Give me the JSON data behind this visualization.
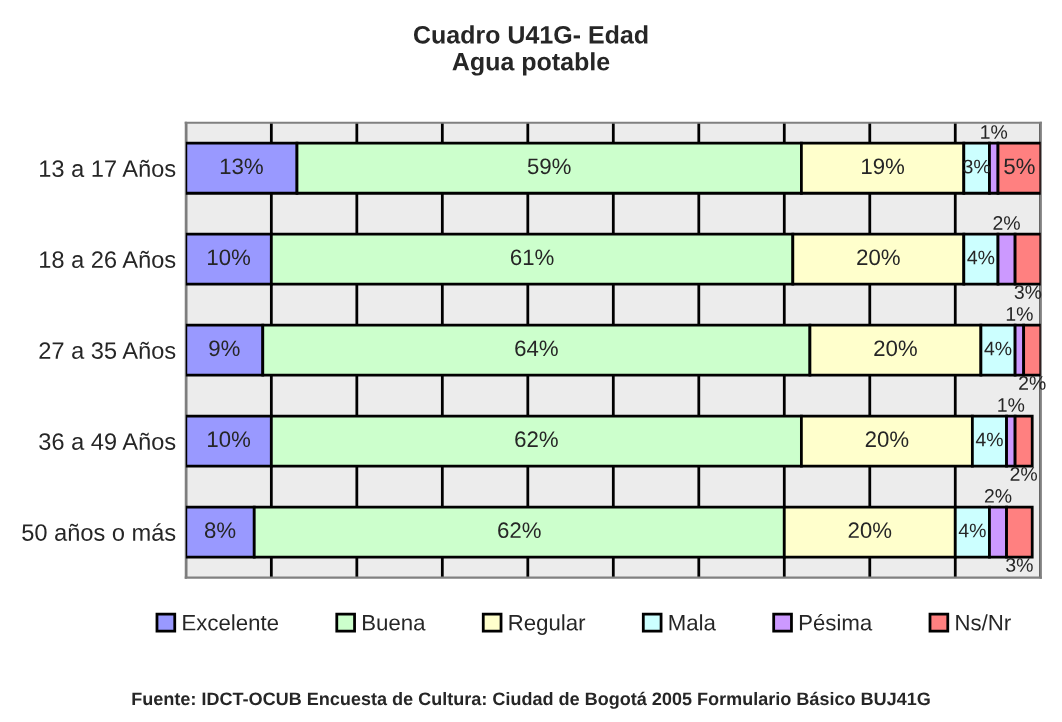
{
  "chart_data": {
    "type": "bar",
    "orientation": "horizontal",
    "stacked": true,
    "title": "Cuadro U41G- Edad\nAgua potable",
    "categories": [
      "13 a 17 Años",
      "18 a 26 Años",
      "27 a 35 Años",
      "36 a 49 Años",
      "50 años o más"
    ],
    "series": [
      {
        "name": "Excelente",
        "color": "#9999ff",
        "values": [
          13,
          10,
          9,
          10,
          8
        ],
        "value_labels": [
          "13%",
          "10%",
          "9%",
          "10%",
          "8%"
        ]
      },
      {
        "name": "Buena",
        "color": "#ccffcc",
        "values": [
          59,
          61,
          64,
          62,
          62
        ],
        "value_labels": [
          "59%",
          "61%",
          "64%",
          "62%",
          "62%"
        ]
      },
      {
        "name": "Regular",
        "color": "#ffffcc",
        "values": [
          19,
          20,
          20,
          20,
          20
        ],
        "value_labels": [
          "19%",
          "20%",
          "20%",
          "20%",
          "20%"
        ]
      },
      {
        "name": "Mala",
        "color": "#ccffff",
        "values": [
          3,
          4,
          4,
          4,
          4
        ],
        "value_labels": [
          "3%",
          "4%",
          "4%",
          "4%",
          "4%"
        ]
      },
      {
        "name": "Pésima",
        "color": "#cc99ff",
        "values": [
          1,
          2,
          1,
          1,
          2
        ],
        "value_labels": [
          "1%",
          "2%",
          "1%",
          "1%",
          "2%"
        ]
      },
      {
        "name": "Ns/Nr",
        "color": "#ff8080",
        "values": [
          5,
          3,
          2,
          2,
          3
        ],
        "value_labels": [
          "5%",
          "3%",
          "2%",
          "2%",
          "3%"
        ]
      }
    ],
    "xlim": [
      0,
      100
    ],
    "xticks": [
      {
        "value": 0,
        "label": null
      },
      {
        "value": 10,
        "label": null
      },
      {
        "value": 20,
        "label": null
      },
      {
        "value": 30,
        "label": null
      },
      {
        "value": 40,
        "label": null
      },
      {
        "value": 50,
        "label": null
      },
      {
        "value": 60,
        "label": null
      },
      {
        "value": 70,
        "label": null
      },
      {
        "value": 80,
        "label": null
      },
      {
        "value": 90,
        "label": null
      },
      {
        "value": 100,
        "label": null
      }
    ],
    "tick_labels": "y",
    "grid": "x",
    "legend": "bottom",
    "annotations": [
      "Fuente: IDCT-OCUB Encuesta de Cultura: Ciudad de Bogotá 2005 Formulario Básico BUJ41G"
    ]
  }
}
